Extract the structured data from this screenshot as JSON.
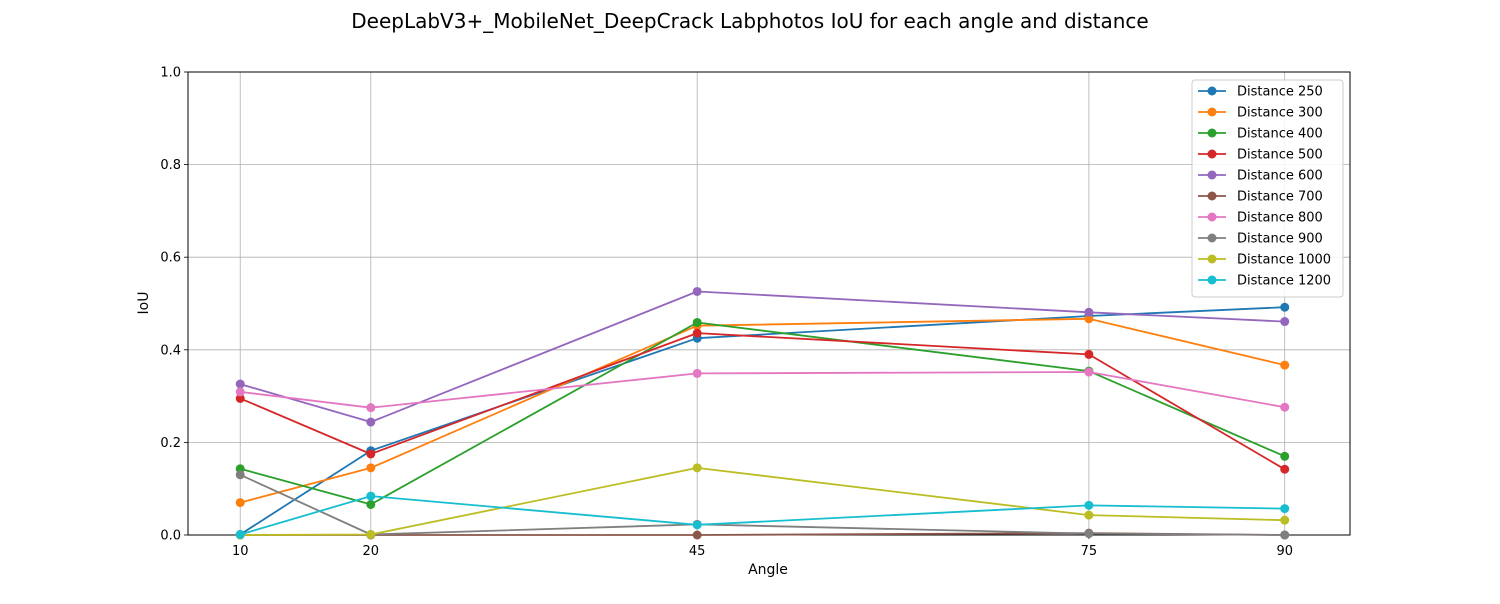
{
  "chart_data": {
    "type": "line",
    "title": "DeepLabV3+_MobileNet_DeepCrack Labphotos IoU for each angle and distance",
    "xlabel": "Angle",
    "ylabel": "IoU",
    "x": [
      10,
      20,
      45,
      75,
      90
    ],
    "xlim": [
      6,
      95
    ],
    "ylim": [
      0.0,
      1.0
    ],
    "xticks": [
      "10",
      "20",
      "45",
      "75",
      "90"
    ],
    "yticks": [
      "0.0",
      "0.2",
      "0.4",
      "0.6",
      "0.8",
      "1.0"
    ],
    "grid": true,
    "legend_position": "top-right",
    "marker": "circle",
    "series": [
      {
        "name": "Distance 250",
        "color": "#1f77b4",
        "values": [
          0.001,
          0.182,
          0.425,
          0.473,
          0.492
        ]
      },
      {
        "name": "Distance 300",
        "color": "#ff7f0e",
        "values": [
          0.07,
          0.145,
          0.452,
          0.467,
          0.367
        ]
      },
      {
        "name": "Distance 400",
        "color": "#2ca02c",
        "values": [
          0.143,
          0.066,
          0.459,
          0.354,
          0.17
        ]
      },
      {
        "name": "Distance 500",
        "color": "#d62728",
        "values": [
          0.295,
          0.175,
          0.436,
          0.39,
          0.142
        ]
      },
      {
        "name": "Distance 600",
        "color": "#9467bd",
        "values": [
          0.326,
          0.244,
          0.526,
          0.481,
          0.461
        ]
      },
      {
        "name": "Distance 700",
        "color": "#8c564b",
        "values": [
          0.0,
          0.0,
          0.0,
          0.004,
          0.0
        ]
      },
      {
        "name": "Distance 800",
        "color": "#e377c2",
        "values": [
          0.309,
          0.275,
          0.349,
          0.352,
          0.276
        ]
      },
      {
        "name": "Distance 900",
        "color": "#7f7f7f",
        "values": [
          0.13,
          0.001,
          0.023,
          0.003,
          0.0
        ]
      },
      {
        "name": "Distance 1000",
        "color": "#bcbd22",
        "values": [
          0.0,
          0.001,
          0.145,
          0.043,
          0.032
        ]
      },
      {
        "name": "Distance 1200",
        "color": "#17becf",
        "values": [
          0.001,
          0.084,
          0.022,
          0.064,
          0.057
        ]
      }
    ]
  }
}
